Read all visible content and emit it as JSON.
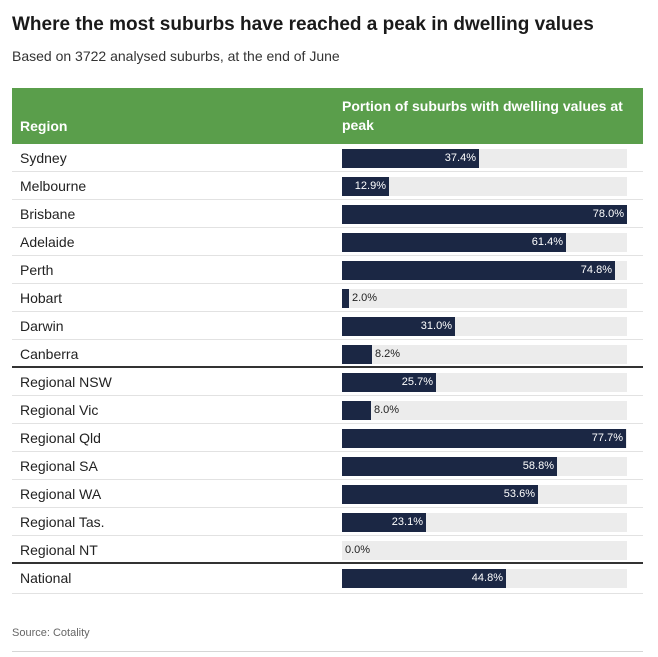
{
  "title": "Where the most suburbs have reached a peak in dwelling values",
  "subtitle": "Based on 3722 analysed suburbs, at the end of June",
  "source": "Source: Cotality",
  "colors": {
    "header_bg": "#5a9e4b",
    "bar": "#1b2744",
    "track": "#ececec"
  },
  "chart_data": {
    "type": "bar",
    "orientation": "horizontal",
    "columns": [
      "Region",
      "Portion of suburbs with dwelling values at peak"
    ],
    "xlim": [
      0,
      78
    ],
    "rows": [
      {
        "label": "Sydney",
        "value": 37.4,
        "text": "37.4%"
      },
      {
        "label": "Melbourne",
        "value": 12.9,
        "text": "12.9%"
      },
      {
        "label": "Brisbane",
        "value": 78.0,
        "text": "78.0%"
      },
      {
        "label": "Adelaide",
        "value": 61.4,
        "text": "61.4%"
      },
      {
        "label": "Perth",
        "value": 74.8,
        "text": "74.8%"
      },
      {
        "label": "Hobart",
        "value": 2.0,
        "text": "2.0%"
      },
      {
        "label": "Darwin",
        "value": 31.0,
        "text": "31.0%"
      },
      {
        "label": "Canberra",
        "value": 8.2,
        "text": "8.2%",
        "section_end": true
      },
      {
        "label": "Regional NSW",
        "value": 25.7,
        "text": "25.7%"
      },
      {
        "label": "Regional Vic",
        "value": 8.0,
        "text": "8.0%"
      },
      {
        "label": "Regional Qld",
        "value": 77.7,
        "text": "77.7%"
      },
      {
        "label": "Regional SA",
        "value": 58.8,
        "text": "58.8%"
      },
      {
        "label": "Regional WA",
        "value": 53.6,
        "text": "53.6%"
      },
      {
        "label": "Regional Tas.",
        "value": 23.1,
        "text": "23.1%"
      },
      {
        "label": "Regional NT",
        "value": 0.0,
        "text": "0.0%",
        "section_end": true
      },
      {
        "label": "National",
        "value": 44.8,
        "text": "44.8%",
        "national": true
      }
    ]
  }
}
